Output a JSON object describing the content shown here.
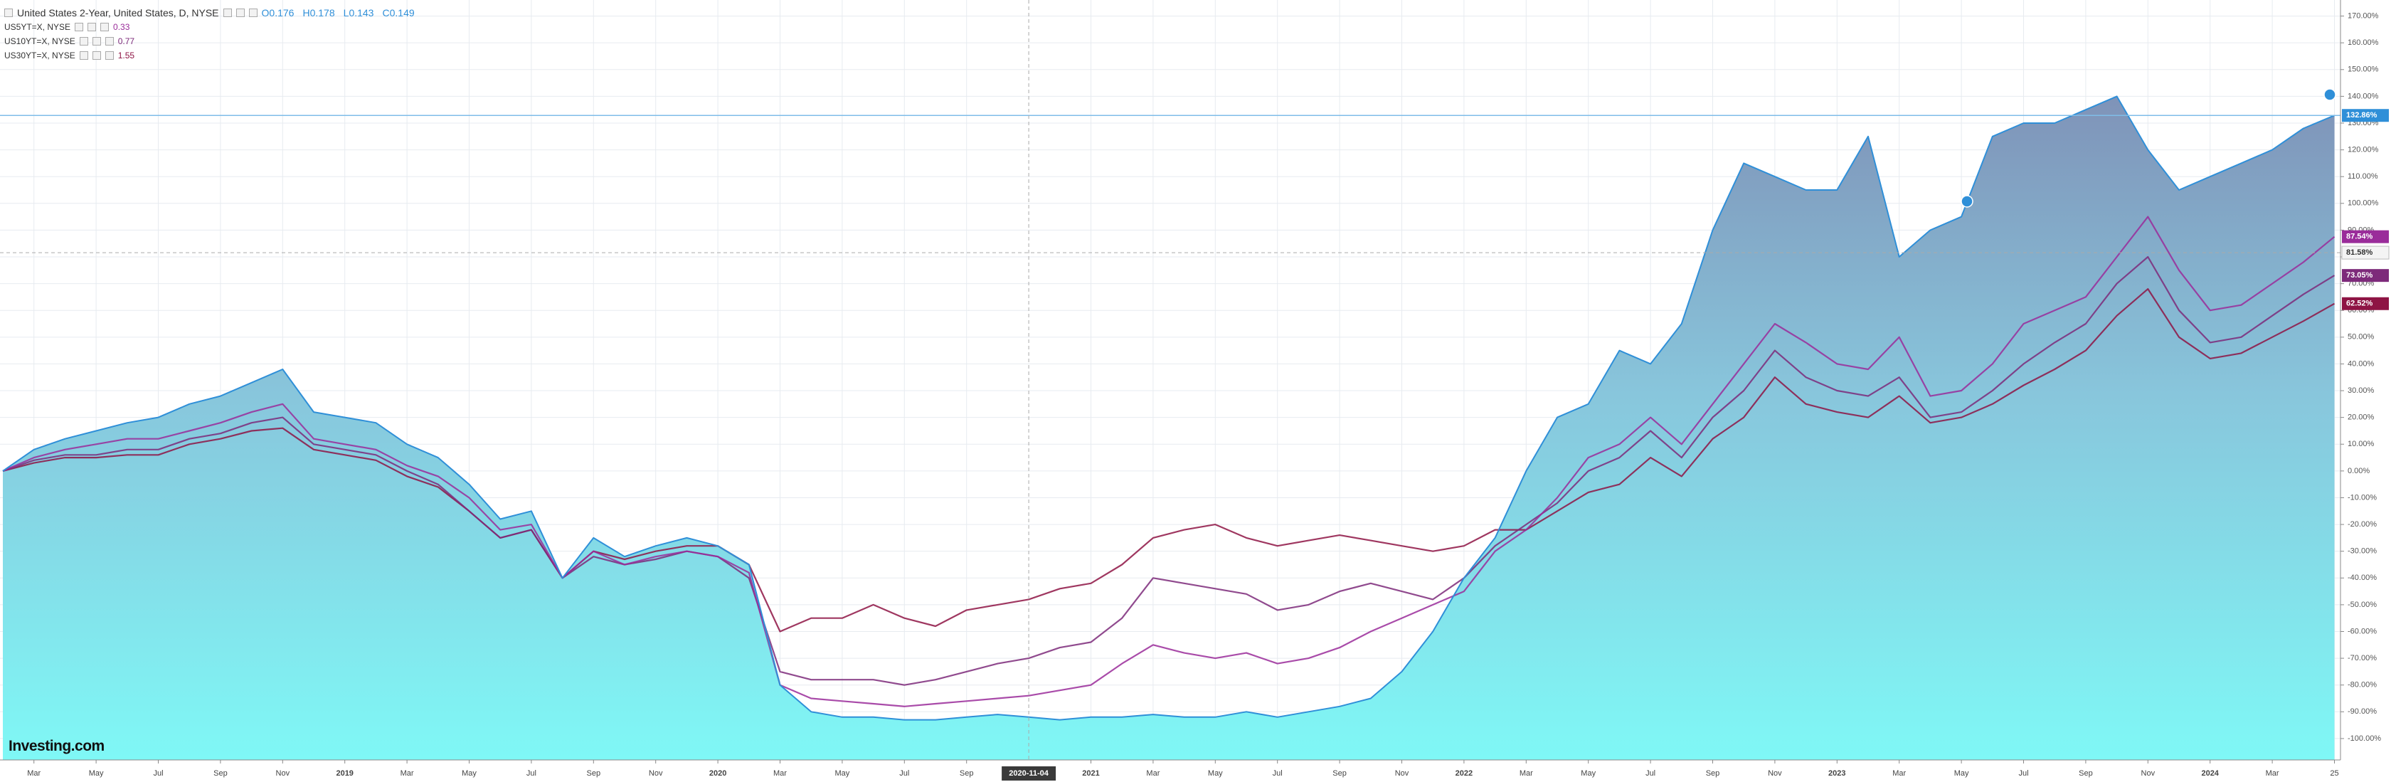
{
  "chart_data": {
    "type": "line",
    "categories": [
      null,
      "Mar",
      null,
      "May",
      null,
      "Jul",
      null,
      "Sep",
      null,
      "Nov",
      null,
      "2019",
      null,
      "Mar",
      null,
      "May",
      null,
      "Jul",
      null,
      "Sep",
      null,
      "Nov",
      null,
      "2020",
      null,
      "Mar",
      null,
      "May",
      null,
      "Jul",
      null,
      "Sep",
      null,
      "2020-11-04",
      null,
      "2021",
      null,
      "Mar",
      null,
      "May",
      null,
      "Jul",
      null,
      "Sep",
      null,
      "Nov",
      null,
      "2022",
      null,
      "Mar",
      null,
      "May",
      null,
      "Jul",
      null,
      "Sep",
      null,
      "Nov",
      null,
      "2023",
      null,
      "Mar",
      null,
      "May",
      null,
      "Jul",
      null,
      "Sep",
      null,
      "Nov",
      null,
      "2024",
      null,
      "Mar",
      null,
      "25"
    ],
    "series": [
      {
        "name": "United States 2-Year, United States, D, NYSE",
        "color": "#2f8fd8",
        "area": true,
        "ohlc": [
          {
            "label": "O",
            "value": 0.176
          },
          {
            "label": "H",
            "value": 0.178
          },
          {
            "label": "L",
            "value": 0.143
          },
          {
            "label": "C",
            "value": 0.149
          }
        ],
        "values": [
          0,
          8,
          12,
          15,
          18,
          20,
          25,
          28,
          33,
          38,
          22,
          20,
          18,
          10,
          5,
          -5,
          -18,
          -15,
          -40,
          -25,
          -32,
          -28,
          -25,
          -28,
          -35,
          -80,
          -90,
          -92,
          -92,
          -93,
          -93,
          -92,
          -91,
          -92,
          -93,
          -92,
          -92,
          -91,
          -92,
          -92,
          -90,
          -92,
          -90,
          -88,
          -85,
          -75,
          -60,
          -40,
          -25,
          0,
          20,
          25,
          45,
          40,
          55,
          90,
          115,
          110,
          105,
          105,
          125,
          80,
          90,
          95,
          125,
          130,
          130,
          135,
          140,
          120,
          105,
          110,
          115,
          120,
          128,
          132.86
        ],
        "value_labels": [
          null,
          null,
          null,
          null,
          null,
          null,
          null,
          null,
          null,
          null,
          null,
          null,
          null,
          null,
          null,
          null,
          null,
          null,
          null,
          null,
          null,
          null,
          null,
          null,
          null,
          null,
          null,
          null,
          null,
          null,
          null,
          null,
          null,
          null,
          null,
          null,
          null,
          null,
          null,
          null,
          null,
          null,
          null,
          null,
          null,
          null,
          null,
          null,
          null,
          null,
          null,
          null,
          null,
          null,
          null,
          null,
          null,
          null,
          null,
          null,
          null,
          null,
          null,
          null,
          null,
          null,
          null,
          null,
          null,
          null,
          null,
          null,
          null,
          null,
          null,
          "132.86%"
        ]
      },
      {
        "name": "US5YT=X, NYSE",
        "color": "#9a2c9a",
        "legend_value": 0.33,
        "values": [
          0,
          5,
          8,
          10,
          12,
          12,
          15,
          18,
          22,
          25,
          12,
          10,
          8,
          2,
          -2,
          -10,
          -22,
          -20,
          -40,
          -30,
          -35,
          -32,
          -30,
          -32,
          -38,
          -80,
          -85,
          -86,
          -87,
          -88,
          -87,
          -86,
          -85,
          -84,
          -82,
          -80,
          -72,
          -65,
          -68,
          -70,
          -68,
          -72,
          -70,
          -66,
          -60,
          -55,
          -50,
          -45,
          -30,
          -22,
          -10,
          5,
          10,
          20,
          10,
          25,
          40,
          55,
          48,
          40,
          38,
          50,
          28,
          30,
          40,
          55,
          60,
          65,
          80,
          95,
          75,
          60,
          62,
          70,
          78,
          87.54
        ],
        "value_labels": [
          null,
          null,
          null,
          null,
          null,
          null,
          null,
          null,
          null,
          null,
          null,
          null,
          null,
          null,
          null,
          null,
          null,
          null,
          null,
          null,
          null,
          null,
          null,
          null,
          null,
          null,
          null,
          null,
          null,
          null,
          null,
          null,
          null,
          null,
          null,
          null,
          null,
          null,
          null,
          null,
          null,
          null,
          null,
          null,
          null,
          null,
          null,
          null,
          null,
          null,
          null,
          null,
          null,
          null,
          null,
          null,
          null,
          null,
          null,
          null,
          null,
          null,
          null,
          null,
          null,
          null,
          null,
          null,
          null,
          null,
          null,
          null,
          null,
          null,
          null,
          "87.54%"
        ]
      },
      {
        "name": "US10YT=X, NYSE",
        "color": "#7d2a7a",
        "legend_value": 0.77,
        "values": [
          0,
          4,
          6,
          6,
          8,
          8,
          12,
          14,
          18,
          20,
          10,
          8,
          6,
          0,
          -5,
          -15,
          -25,
          -22,
          -40,
          -32,
          -35,
          -33,
          -30,
          -32,
          -40,
          -75,
          -78,
          -78,
          -78,
          -80,
          -78,
          -75,
          -72,
          -70,
          -66,
          -64,
          -55,
          -40,
          -42,
          -44,
          -46,
          -52,
          -50,
          -45,
          -42,
          -45,
          -48,
          -40,
          -28,
          -20,
          -12,
          0,
          5,
          15,
          5,
          20,
          30,
          45,
          35,
          30,
          28,
          35,
          20,
          22,
          30,
          40,
          48,
          55,
          70,
          80,
          60,
          48,
          50,
          58,
          66,
          73.05
        ],
        "value_labels": [
          null,
          null,
          null,
          null,
          null,
          null,
          null,
          null,
          null,
          null,
          null,
          null,
          null,
          null,
          null,
          null,
          null,
          null,
          null,
          null,
          null,
          null,
          null,
          null,
          null,
          null,
          null,
          null,
          null,
          null,
          null,
          null,
          null,
          null,
          null,
          null,
          null,
          null,
          null,
          null,
          null,
          null,
          null,
          null,
          null,
          null,
          null,
          null,
          null,
          null,
          null,
          null,
          null,
          null,
          null,
          null,
          null,
          null,
          null,
          null,
          null,
          null,
          null,
          null,
          null,
          null,
          null,
          null,
          null,
          null,
          null,
          null,
          null,
          null,
          null,
          "73.05%"
        ]
      },
      {
        "name": "US30YT=X, NYSE",
        "color": "#8e1444",
        "legend_value": 1.55,
        "values": [
          0,
          3,
          5,
          5,
          6,
          6,
          10,
          12,
          15,
          16,
          8,
          6,
          4,
          -2,
          -6,
          -15,
          -25,
          -22,
          -40,
          -30,
          -33,
          -30,
          -28,
          -28,
          -35,
          -60,
          -55,
          -55,
          -50,
          -55,
          -58,
          -52,
          -50,
          -48,
          -44,
          -42,
          -35,
          -25,
          -22,
          -20,
          -25,
          -28,
          -26,
          -24,
          -26,
          -28,
          -30,
          -28,
          -22,
          -22,
          -15,
          -8,
          -5,
          5,
          -2,
          12,
          20,
          35,
          25,
          22,
          20,
          28,
          18,
          20,
          25,
          32,
          38,
          45,
          58,
          68,
          50,
          42,
          44,
          50,
          56,
          62.52
        ],
        "value_labels": [
          null,
          null,
          null,
          null,
          null,
          null,
          null,
          null,
          null,
          null,
          null,
          null,
          null,
          null,
          null,
          null,
          null,
          null,
          null,
          null,
          null,
          null,
          null,
          null,
          null,
          null,
          null,
          null,
          null,
          null,
          null,
          null,
          null,
          null,
          null,
          null,
          null,
          null,
          null,
          null,
          null,
          null,
          null,
          null,
          null,
          null,
          null,
          null,
          null,
          null,
          null,
          null,
          null,
          null,
          null,
          null,
          null,
          null,
          null,
          null,
          null,
          null,
          null,
          null,
          null,
          null,
          null,
          null,
          null,
          null,
          null,
          null,
          null,
          null,
          null,
          "62.52%"
        ]
      }
    ],
    "ylim": [
      -108,
      176
    ],
    "yticks": [
      {
        "value": 170,
        "label": "170.00%"
      },
      {
        "value": 160,
        "label": "160.00%"
      },
      {
        "value": 150,
        "label": "150.00%"
      },
      {
        "value": 140,
        "label": "140.00%"
      },
      {
        "value": 130,
        "label": "130.00%"
      },
      {
        "value": 120,
        "label": "120.00%"
      },
      {
        "value": 110,
        "label": "110.00%"
      },
      {
        "value": 100,
        "label": "100.00%"
      },
      {
        "value": 90,
        "label": "90.00%"
      },
      {
        "value": 80,
        "label": "80.00%"
      },
      {
        "value": 70,
        "label": "70.00%"
      },
      {
        "value": 60,
        "label": "60.00%"
      },
      {
        "value": 50,
        "label": "50.00%"
      },
      {
        "value": 40,
        "label": "40.00%"
      },
      {
        "value": 30,
        "label": "30.00%"
      },
      {
        "value": 20,
        "label": "20.00%"
      },
      {
        "value": 10,
        "label": "10.00%"
      },
      {
        "value": 0,
        "label": "0.00%"
      },
      {
        "value": -10,
        "label": "-10.00%"
      },
      {
        "value": -20,
        "label": "-20.00%"
      },
      {
        "value": -30,
        "label": "-30.00%"
      },
      {
        "value": -40,
        "label": "-40.00%"
      },
      {
        "value": -50,
        "label": "-50.00%"
      },
      {
        "value": -60,
        "label": "-60.00%"
      },
      {
        "value": -70,
        "label": "-70.00%"
      },
      {
        "value": -80,
        "label": "-80.00%"
      },
      {
        "value": -90,
        "label": "-90.00%"
      },
      {
        "value": -100,
        "label": "-100.00%"
      }
    ],
    "grid": true,
    "crosshair_index": 33,
    "crosshair_y": {
      "value": 81.58,
      "label": "81.58%"
    },
    "logo": "Investing.com"
  }
}
